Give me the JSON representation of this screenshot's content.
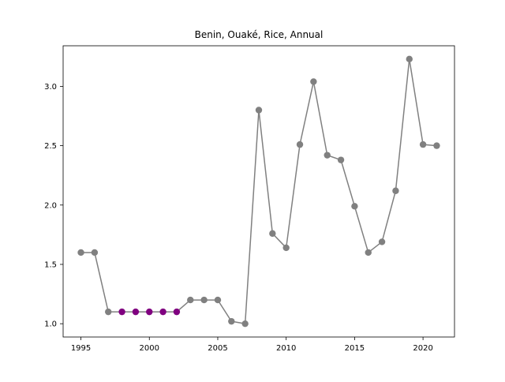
{
  "chart_data": {
    "type": "line",
    "title": "Benin, Ouaké, Rice, Annual",
    "xlabel": "",
    "ylabel": "",
    "xlim": [
      1993.7,
      2022.3
    ],
    "ylim": [
      0.888,
      3.342
    ],
    "xticks": [
      1995,
      2000,
      2005,
      2010,
      2015,
      2020
    ],
    "xtick_labels": [
      "1995",
      "2000",
      "2005",
      "2010",
      "2015",
      "2020"
    ],
    "yticks": [
      1.0,
      1.5,
      2.0,
      2.5,
      3.0
    ],
    "ytick_labels": [
      "1.0",
      "1.5",
      "2.0",
      "2.5",
      "3.0"
    ],
    "grid": false,
    "legend": null,
    "colors": {
      "line": "#808080",
      "marker_default": "#808080",
      "marker_highlight": "#800080",
      "frame": "#000000",
      "background": "#ffffff"
    },
    "series": [
      {
        "x": [
          1995,
          1996,
          1997,
          1998,
          1999,
          2000,
          2001,
          2002,
          2003,
          2004,
          2005,
          2006,
          2007,
          2008,
          2009,
          2010,
          2011,
          2012,
          2013,
          2014,
          2015,
          2016,
          2017,
          2018,
          2019,
          2020,
          2021
        ],
        "values": [
          1.6,
          1.6,
          1.1,
          1.1,
          1.1,
          1.1,
          1.1,
          1.1,
          1.2,
          1.2,
          1.2,
          1.02,
          1.0,
          2.8,
          1.76,
          1.64,
          2.51,
          3.04,
          2.42,
          2.38,
          1.99,
          1.6,
          1.69,
          2.12,
          3.23,
          2.51,
          2.5
        ],
        "highlighted": [
          false,
          false,
          false,
          true,
          true,
          true,
          true,
          true,
          false,
          false,
          false,
          false,
          false,
          false,
          false,
          false,
          false,
          false,
          false,
          false,
          false,
          false,
          false,
          false,
          false,
          false,
          false
        ]
      }
    ]
  }
}
